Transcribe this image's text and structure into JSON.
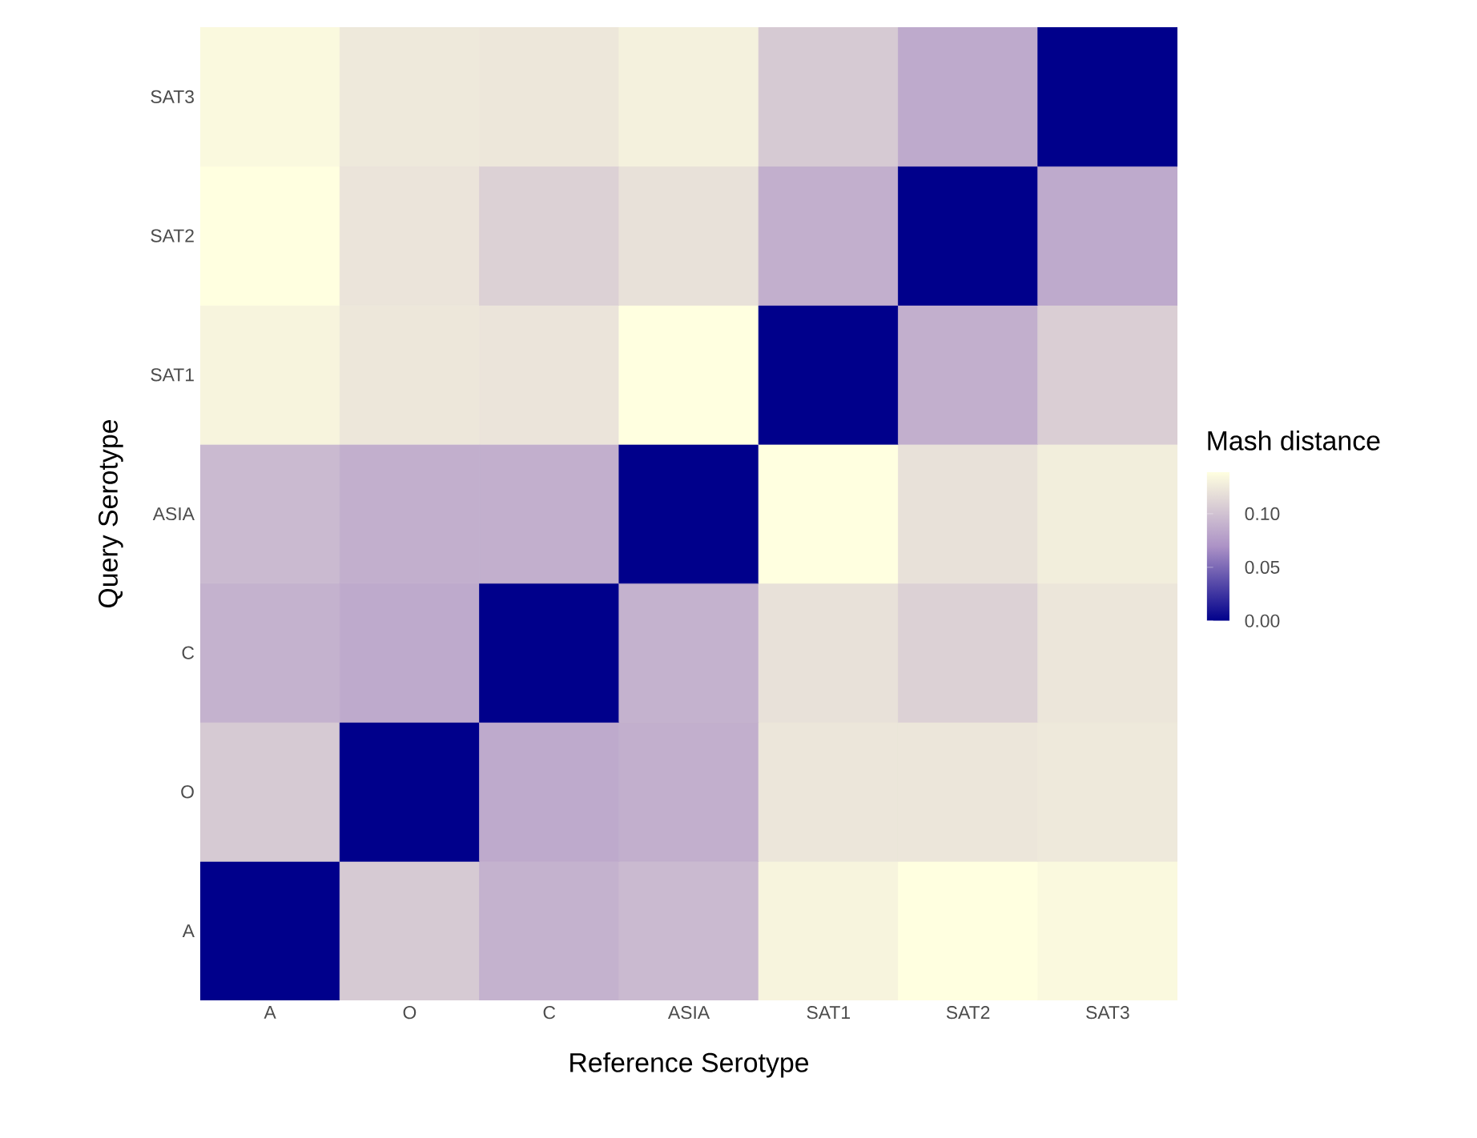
{
  "chart_data": {
    "type": "heatmap",
    "xlabel": "Reference Serotype",
    "ylabel": "Query Serotype",
    "clabel": "Mash distance",
    "categories": [
      "A",
      "O",
      "C",
      "ASIA",
      "SAT1",
      "SAT2",
      "SAT3"
    ],
    "y_categories": [
      "SAT3",
      "SAT2",
      "SAT1",
      "ASIA",
      "C",
      "O",
      "A"
    ],
    "cells": [
      [
        0.135,
        0.125,
        0.124,
        0.13,
        0.105,
        0.085,
        0
      ],
      [
        0.139,
        0.122,
        0.11,
        0.12,
        0.088,
        0,
        0.085
      ],
      [
        0.132,
        0.124,
        0.122,
        0.139,
        0,
        0.088,
        0.108
      ],
      [
        0.095,
        0.088,
        0.088,
        0,
        0.139,
        0.12,
        0.128
      ],
      [
        0.09,
        0.085,
        0,
        0.09,
        0.12,
        0.11,
        0.123
      ],
      [
        0.105,
        0,
        0.085,
        0.088,
        0.123,
        0.123,
        0.125
      ],
      [
        0,
        0.105,
        0.09,
        0.095,
        0.132,
        0.139,
        0.135
      ]
    ],
    "clim": [
      0,
      0.139
    ],
    "cticks": [
      {
        "value": 0,
        "label": "0.00"
      },
      {
        "value": 0.05,
        "label": "0.05"
      },
      {
        "value": 0.1,
        "label": "0.10"
      }
    ]
  }
}
